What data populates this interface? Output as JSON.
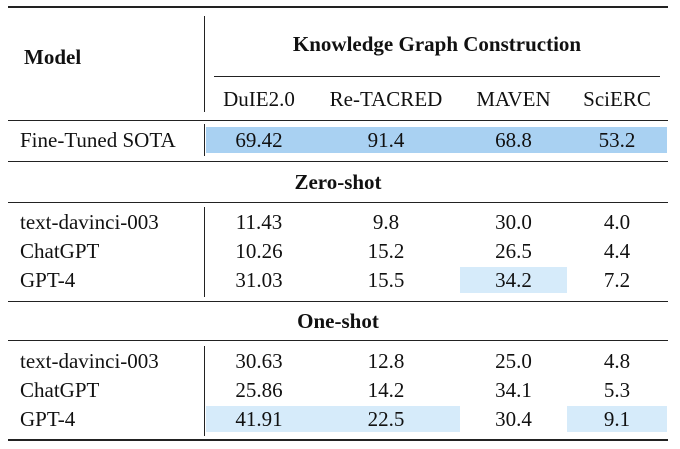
{
  "header": {
    "model_label": "Model",
    "group_label": "Knowledge Graph Construction",
    "columns": [
      "DuIE2.0",
      "Re-TACRED",
      "MAVEN",
      "SciERC"
    ]
  },
  "sota": {
    "model": "Fine-Tuned SOTA",
    "values": [
      "69.42",
      "91.4",
      "68.8",
      "53.2"
    ]
  },
  "zero_shot": {
    "title": "Zero-shot",
    "rows": [
      {
        "model": "text-davinci-003",
        "values": [
          "11.43",
          "9.8",
          "30.0",
          "4.0"
        ]
      },
      {
        "model": "ChatGPT",
        "values": [
          "10.26",
          "15.2",
          "26.5",
          "4.4"
        ]
      },
      {
        "model": "GPT-4",
        "values": [
          "31.03",
          "15.5",
          "34.2",
          "7.2"
        ]
      }
    ]
  },
  "one_shot": {
    "title": "One-shot",
    "rows": [
      {
        "model": "text-davinci-003",
        "values": [
          "30.63",
          "12.8",
          "25.0",
          "4.8"
        ]
      },
      {
        "model": "ChatGPT",
        "values": [
          "25.86",
          "14.2",
          "34.1",
          "5.3"
        ]
      },
      {
        "model": "GPT-4",
        "values": [
          "41.91",
          "22.5",
          "30.4",
          "9.1"
        ]
      }
    ]
  },
  "colors": {
    "sota_highlight": "#a9d1f2",
    "best_highlight": "#d6ebfa"
  }
}
